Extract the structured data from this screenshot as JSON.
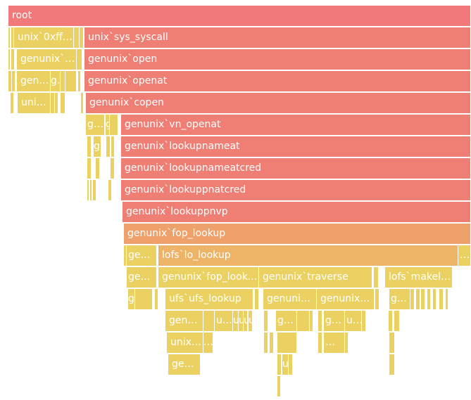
{
  "chart_data": {
    "type": "flamegraph",
    "row_height": 31,
    "total": 657,
    "frames": [
      {
        "name": "root",
        "label": "root",
        "depth": 0,
        "start": 0,
        "value": 657,
        "color": "#f17979"
      },
      {
        "name": "thin-1-a",
        "label": "",
        "depth": 1,
        "start": 0,
        "value": 3,
        "color": "#ead161"
      },
      {
        "name": "thin-1-b",
        "label": "",
        "depth": 1,
        "start": 4,
        "value": 4,
        "color": "#ead161"
      },
      {
        "name": "unix-0xffff",
        "label": "unix`0xffff…",
        "depth": 1,
        "start": 8,
        "value": 85,
        "color": "#ead161"
      },
      {
        "name": "thin-1-c",
        "label": "",
        "depth": 1,
        "start": 93,
        "value": 8,
        "color": "#ead161"
      },
      {
        "name": "thin-1-d",
        "label": "",
        "depth": 1,
        "start": 101,
        "value": 6,
        "color": "#ead161"
      },
      {
        "name": "unix-sys-syscall",
        "label": "unix`sys_syscall",
        "depth": 1,
        "start": 108,
        "value": 549,
        "color": "#ef7f74"
      },
      {
        "name": "thin-2-a",
        "label": "",
        "depth": 2,
        "start": 0,
        "value": 3,
        "color": "#ead161"
      },
      {
        "name": "thin-2-b",
        "label": "",
        "depth": 2,
        "start": 4,
        "value": 5,
        "color": "#ead161"
      },
      {
        "name": "genunix-fork-frame",
        "label": "genunix`…",
        "depth": 2,
        "start": 12,
        "value": 85,
        "color": "#ead161"
      },
      {
        "name": "thin-2-c",
        "label": "",
        "depth": 2,
        "start": 97,
        "value": 8,
        "color": "#ead161"
      },
      {
        "name": "genunix-open",
        "label": "genunix`open",
        "depth": 2,
        "start": 108,
        "value": 549,
        "color": "#ef7f74"
      },
      {
        "name": "thin-3-a",
        "label": "",
        "depth": 3,
        "start": 0,
        "value": 5,
        "color": "#ead161"
      },
      {
        "name": "thin-3-b",
        "label": "",
        "depth": 3,
        "start": 5,
        "value": 5,
        "color": "#ead161"
      },
      {
        "name": "gen-call-a",
        "label": "gen…",
        "depth": 3,
        "start": 12,
        "value": 48,
        "color": "#ead161"
      },
      {
        "name": "g-call-b",
        "label": "g…",
        "depth": 3,
        "start": 60,
        "value": 14,
        "color": "#ead161"
      },
      {
        "name": "thin-3-c",
        "label": "",
        "depth": 3,
        "start": 74,
        "value": 7,
        "color": "#ead161"
      },
      {
        "name": "blank-3-d",
        "label": "",
        "depth": 3,
        "start": 81,
        "value": 16,
        "color": "#ead161"
      },
      {
        "name": "thin-3-e",
        "label": "",
        "depth": 3,
        "start": 99,
        "value": 4,
        "color": "#ead161"
      },
      {
        "name": "genunix-openat",
        "label": "genunix`openat",
        "depth": 3,
        "start": 108,
        "value": 549,
        "color": "#ef7f74"
      },
      {
        "name": "thin-4-a",
        "label": "",
        "depth": 4,
        "start": 3,
        "value": 5,
        "color": "#ead161"
      },
      {
        "name": "uni-call",
        "label": "uni…",
        "depth": 4,
        "start": 13,
        "value": 47,
        "color": "#ead161"
      },
      {
        "name": "thin-4-b",
        "label": "",
        "depth": 4,
        "start": 60,
        "value": 6,
        "color": "#ead161"
      },
      {
        "name": "thin-4-c",
        "label": "",
        "depth": 4,
        "start": 66,
        "value": 5,
        "color": "#ead161"
      },
      {
        "name": "thin-4-d",
        "label": "",
        "depth": 4,
        "start": 74,
        "value": 7,
        "color": "#ead161"
      },
      {
        "name": "thin-4-e",
        "label": "",
        "depth": 4,
        "start": 103,
        "value": 4,
        "color": "#ead161"
      },
      {
        "name": "genunix-copen",
        "label": "genunix`copen",
        "depth": 4,
        "start": 110,
        "value": 547,
        "color": "#ef7f74"
      },
      {
        "name": "g-copen-a",
        "label": "g…",
        "depth": 5,
        "start": 110,
        "value": 27,
        "color": "#ead161"
      },
      {
        "name": "g-copen-b",
        "label": "g",
        "depth": 5,
        "start": 138,
        "value": 6,
        "color": "#ead161"
      },
      {
        "name": "thin-5-a",
        "label": "",
        "depth": 5,
        "start": 144,
        "value": 12,
        "color": "#ead161"
      },
      {
        "name": "genunix-vn-openat",
        "label": "genunix`vn_openat",
        "depth": 5,
        "start": 160,
        "value": 497,
        "color": "#ef7f74"
      },
      {
        "name": "thin-6-a",
        "label": "",
        "depth": 6,
        "start": 112,
        "value": 6,
        "color": "#ead161"
      },
      {
        "name": "g-vn-a",
        "label": "g",
        "depth": 6,
        "start": 121,
        "value": 11,
        "color": "#ead161"
      },
      {
        "name": "thin-6-b",
        "label": "",
        "depth": 6,
        "start": 139,
        "value": 6,
        "color": "#ead161"
      },
      {
        "name": "thin-6-c",
        "label": "",
        "depth": 6,
        "start": 146,
        "value": 5,
        "color": "#ead161"
      },
      {
        "name": "genunix-lookupnameat",
        "label": "genunix`lookupnameat",
        "depth": 6,
        "start": 160,
        "value": 497,
        "color": "#ef7f74"
      },
      {
        "name": "thin-7-a",
        "label": "",
        "depth": 7,
        "start": 112,
        "value": 6,
        "color": "#ead161"
      },
      {
        "name": "thin-7-b",
        "label": "",
        "depth": 7,
        "start": 124,
        "value": 6,
        "color": "#ead161"
      },
      {
        "name": "thin-7-c",
        "label": "",
        "depth": 7,
        "start": 145,
        "value": 6,
        "color": "#ead161"
      },
      {
        "name": "genunix-lookupnameatcred",
        "label": "genunix`lookupnameatcred",
        "depth": 7,
        "start": 160,
        "value": 497,
        "color": "#ef7f74"
      },
      {
        "name": "thin-8-a",
        "label": "",
        "depth": 8,
        "start": 112,
        "value": 3,
        "color": "#ead161"
      },
      {
        "name": "thin-8-b",
        "label": "",
        "depth": 8,
        "start": 116,
        "value": 3,
        "color": "#ead161"
      },
      {
        "name": "thin-8-c",
        "label": "",
        "depth": 8,
        "start": 120,
        "value": 5,
        "color": "#ead161"
      },
      {
        "name": "thin-8-d",
        "label": "",
        "depth": 8,
        "start": 142,
        "value": 5,
        "color": "#ead161"
      },
      {
        "name": "genunix-lookuppnatcred",
        "label": "genunix`lookuppnatcred",
        "depth": 8,
        "start": 160,
        "value": 497,
        "color": "#ef7f74"
      },
      {
        "name": "genunix-lookuppnvp",
        "label": "genunix`lookuppnvp",
        "depth": 9,
        "start": 162,
        "value": 495,
        "color": "#ef7f74"
      },
      {
        "name": "genunix-fop-lookup",
        "label": "genunix`fop_lookup",
        "depth": 10,
        "start": 164,
        "value": 493,
        "color": "#eea16a"
      },
      {
        "name": "thin-11-a",
        "label": "",
        "depth": 11,
        "start": 164,
        "value": 4,
        "color": "#ead161"
      },
      {
        "name": "ge-lookup-a",
        "label": "ge…",
        "depth": 11,
        "start": 168,
        "value": 43,
        "color": "#ead161"
      },
      {
        "name": "lofs-lo-lookup",
        "label": "lofs`lo_lookup",
        "depth": 11,
        "start": 213,
        "value": 426,
        "color": "#edb367"
      },
      {
        "name": "dots-11",
        "label": "…",
        "depth": 11,
        "start": 639,
        "value": 18,
        "color": "#ead161"
      },
      {
        "name": "ge-lookup-b",
        "label": "ge…",
        "depth": 12,
        "start": 168,
        "value": 43,
        "color": "#ead161"
      },
      {
        "name": "genunix-fop-lookup-2",
        "label": "genunix`fop_lookup",
        "depth": 12,
        "start": 213,
        "value": 143,
        "color": "#ead161"
      },
      {
        "name": "genunix-traverse",
        "label": "genunix`traverse",
        "depth": 12,
        "start": 356,
        "value": 161,
        "color": "#ead161"
      },
      {
        "name": "thin-12-a",
        "label": "",
        "depth": 12,
        "start": 519,
        "value": 7,
        "color": "#ead161"
      },
      {
        "name": "lofs-makelonode",
        "label": "lofs`makel…",
        "depth": 12,
        "start": 535,
        "value": 96,
        "color": "#ead161"
      },
      {
        "name": "g-12",
        "label": "g",
        "depth": 13,
        "start": 170,
        "value": 10,
        "color": "#ead161"
      },
      {
        "name": "blank-13-a",
        "label": "",
        "depth": 13,
        "start": 180,
        "value": 25,
        "color": "#ead161"
      },
      {
        "name": "thin-13-a",
        "label": "",
        "depth": 13,
        "start": 208,
        "value": 5,
        "color": "#ead161"
      },
      {
        "name": "ufs-ufs-lookup",
        "label": "ufs`ufs_lookup",
        "depth": 13,
        "start": 223,
        "value": 125,
        "color": "#ead161"
      },
      {
        "name": "thin-13-b",
        "label": "",
        "depth": 13,
        "start": 350,
        "value": 6,
        "color": "#ead161"
      },
      {
        "name": "genunix-trav-a",
        "label": "genunix…",
        "depth": 13,
        "start": 362,
        "value": 76,
        "color": "#ead161"
      },
      {
        "name": "genunix-trav-b",
        "label": "genunix`…",
        "depth": 13,
        "start": 438,
        "value": 82,
        "color": "#ead161"
      },
      {
        "name": "thin-13-c",
        "label": "",
        "depth": 13,
        "start": 521,
        "value": 6,
        "color": "#ead161"
      },
      {
        "name": "g-13-a",
        "label": "g…",
        "depth": 13,
        "start": 541,
        "value": 30,
        "color": "#ead161"
      },
      {
        "name": "thin-13-d",
        "label": "",
        "depth": 13,
        "start": 571,
        "value": 6,
        "color": "#ead161"
      },
      {
        "name": "thin-13-e",
        "label": "",
        "depth": 13,
        "start": 579,
        "value": 6,
        "color": "#ead161"
      },
      {
        "name": "thin-13-f",
        "label": "",
        "depth": 13,
        "start": 586,
        "value": 6,
        "color": "#ead161"
      },
      {
        "name": "thin-13-g",
        "label": "",
        "depth": 13,
        "start": 595,
        "value": 5,
        "color": "#ead161"
      },
      {
        "name": "thin-13-h",
        "label": "",
        "depth": 13,
        "start": 603,
        "value": 5,
        "color": "#ead161"
      },
      {
        "name": "thin-13-i",
        "label": "",
        "depth": 13,
        "start": 612,
        "value": 6,
        "color": "#ead161"
      },
      {
        "name": "thin-13-j",
        "label": "",
        "depth": 13,
        "start": 621,
        "value": 4,
        "color": "#ead161"
      },
      {
        "name": "gen-ufs-a",
        "label": "gen…",
        "depth": 14,
        "start": 223,
        "value": 54,
        "color": "#ead161"
      },
      {
        "name": "blank-14-a",
        "label": "",
        "depth": 14,
        "start": 277,
        "value": 16,
        "color": "#ead161"
      },
      {
        "name": "u-14-a",
        "label": "u…",
        "depth": 14,
        "start": 293,
        "value": 26,
        "color": "#ead161"
      },
      {
        "name": "u-14-b",
        "label": "u",
        "depth": 14,
        "start": 319,
        "value": 8,
        "color": "#ead161"
      },
      {
        "name": "u-14-c",
        "label": "u",
        "depth": 14,
        "start": 327,
        "value": 7,
        "color": "#ead161"
      },
      {
        "name": "u-14-d",
        "label": "u",
        "depth": 14,
        "start": 334,
        "value": 6,
        "color": "#ead161"
      },
      {
        "name": "u-14-e",
        "label": "u",
        "depth": 14,
        "start": 341,
        "value": 6,
        "color": "#ead161"
      },
      {
        "name": "thin-14-a",
        "label": "",
        "depth": 14,
        "start": 363,
        "value": 6,
        "color": "#ead161"
      },
      {
        "name": "g-14-a",
        "label": "g…",
        "depth": 14,
        "start": 380,
        "value": 30,
        "color": "#ead161"
      },
      {
        "name": "blank-14-b",
        "label": "",
        "depth": 14,
        "start": 410,
        "value": 18,
        "color": "#ead161"
      },
      {
        "name": "thin-14-b",
        "label": "",
        "depth": 14,
        "start": 428,
        "value": 5,
        "color": "#ead161"
      },
      {
        "name": "thin-14-c",
        "label": "",
        "depth": 14,
        "start": 440,
        "value": 6,
        "color": "#ead161"
      },
      {
        "name": "g-14-b",
        "label": "g…",
        "depth": 14,
        "start": 448,
        "value": 30,
        "color": "#ead161"
      },
      {
        "name": "u-14-f",
        "label": "u…",
        "depth": 14,
        "start": 478,
        "value": 24,
        "color": "#ead161"
      },
      {
        "name": "thin-14-d",
        "label": "",
        "depth": 14,
        "start": 502,
        "value": 6,
        "color": "#ead161"
      },
      {
        "name": "thin-14-e",
        "label": "",
        "depth": 14,
        "start": 540,
        "value": 6,
        "color": "#ead161"
      },
      {
        "name": "thin-14-f",
        "label": "",
        "depth": 14,
        "start": 548,
        "value": 8,
        "color": "#ead161"
      },
      {
        "name": "unix-14",
        "label": "unix…",
        "depth": 15,
        "start": 225,
        "value": 52,
        "color": "#ead161"
      },
      {
        "name": "dots-15",
        "label": "…",
        "depth": 15,
        "start": 277,
        "value": 14,
        "color": "#ead161"
      },
      {
        "name": "thin-15-a",
        "label": "",
        "depth": 15,
        "start": 363,
        "value": 6,
        "color": "#ead161"
      },
      {
        "name": "thin-15-b",
        "label": "",
        "depth": 15,
        "start": 371,
        "value": 6,
        "color": "#ead161"
      },
      {
        "name": "blank-15-a",
        "label": "",
        "depth": 15,
        "start": 382,
        "value": 28,
        "color": "#ead161"
      },
      {
        "name": "thin-15-c",
        "label": "",
        "depth": 15,
        "start": 440,
        "value": 6,
        "color": "#ead161"
      },
      {
        "name": "dots-15-b",
        "label": "…",
        "depth": 15,
        "start": 448,
        "value": 30,
        "color": "#ead161"
      },
      {
        "name": "thin-15-d",
        "label": "",
        "depth": 15,
        "start": 478,
        "value": 5,
        "color": "#ead161"
      },
      {
        "name": "thin-15-e",
        "label": "",
        "depth": 15,
        "start": 541,
        "value": 8,
        "color": "#ead161"
      },
      {
        "name": "gen-16",
        "label": "gen…",
        "depth": 16,
        "start": 227,
        "value": 46,
        "color": "#ead161"
      },
      {
        "name": "thin-16-a",
        "label": "",
        "depth": 16,
        "start": 382,
        "value": 6,
        "color": "#ead161"
      },
      {
        "name": "u-16",
        "label": "u",
        "depth": 16,
        "start": 389,
        "value": 9,
        "color": "#ead161"
      },
      {
        "name": "thin-16-b",
        "label": "",
        "depth": 16,
        "start": 398,
        "value": 6,
        "color": "#ead161"
      },
      {
        "name": "thin-16-c",
        "label": "",
        "depth": 16,
        "start": 541,
        "value": 8,
        "color": "#ead161"
      },
      {
        "name": "thin-17-a",
        "label": "",
        "depth": 17,
        "start": 382,
        "value": 5,
        "color": "#ead161"
      }
    ]
  }
}
